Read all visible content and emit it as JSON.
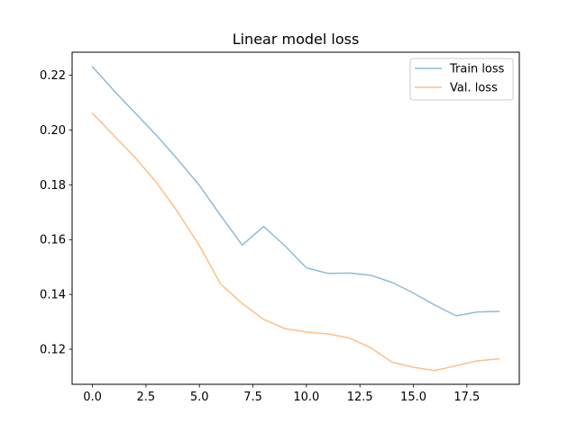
{
  "chart_data": {
    "type": "line",
    "title": "Linear model loss",
    "xlabel": "",
    "ylabel": "",
    "xlim": [
      -0.95,
      19.95
    ],
    "ylim": [
      0.1072,
      0.2284
    ],
    "xticks": [
      0.0,
      2.5,
      5.0,
      7.5,
      10.0,
      12.5,
      15.0,
      17.5
    ],
    "xtick_labels": [
      "0.0",
      "2.5",
      "5.0",
      "7.5",
      "10.0",
      "12.5",
      "15.0",
      "17.5"
    ],
    "yticks": [
      0.12,
      0.14,
      0.16,
      0.18,
      0.2,
      0.22
    ],
    "ytick_labels": [
      "0.12",
      "0.14",
      "0.16",
      "0.18",
      "0.20",
      "0.22"
    ],
    "grid": false,
    "legend_position": "top-right",
    "x": [
      0,
      1,
      2,
      3,
      4,
      5,
      6,
      7,
      8,
      9,
      10,
      11,
      12,
      13,
      14,
      15,
      16,
      17,
      18,
      19
    ],
    "series": [
      {
        "name": "Train loss",
        "color": "#1f77b4",
        "values": [
          0.2231,
          0.2144,
          0.2062,
          0.198,
          0.1891,
          0.1798,
          0.1687,
          0.158,
          0.1648,
          0.1577,
          0.1497,
          0.1477,
          0.1478,
          0.147,
          0.1444,
          0.1405,
          0.1361,
          0.1322,
          0.1336,
          0.1338
        ]
      },
      {
        "name": "Val. loss",
        "color": "#ff7f0e",
        "values": [
          0.2061,
          0.198,
          0.1899,
          0.1808,
          0.1699,
          0.1578,
          0.1437,
          0.1367,
          0.1309,
          0.1275,
          0.1263,
          0.1256,
          0.1241,
          0.1206,
          0.1153,
          0.1134,
          0.1122,
          0.114,
          0.1158,
          0.1165
        ]
      }
    ]
  }
}
